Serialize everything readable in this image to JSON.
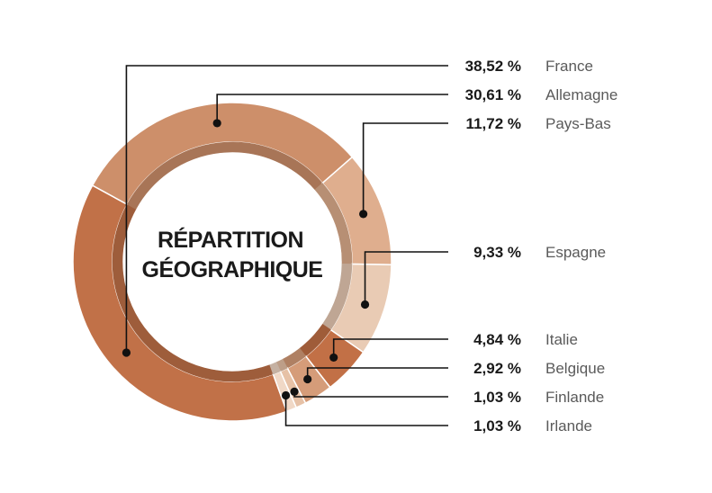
{
  "chart_data": {
    "type": "pie",
    "variant": "donut",
    "title_lines": [
      "RÉPARTITION",
      "GÉOGRAPHIQUE"
    ],
    "slices": [
      {
        "label": "France",
        "value_label": "38,52 %",
        "value": 38.52,
        "color": "#c17148"
      },
      {
        "label": "Allemagne",
        "value_label": "30,61 %",
        "value": 30.61,
        "color": "#cd8f6a"
      },
      {
        "label": "Pays-Bas",
        "value_label": "11,72 %",
        "value": 11.72,
        "color": "#dfae8e"
      },
      {
        "label": "Espagne",
        "value_label": "9,33 %",
        "value": 9.33,
        "color": "#e9cbb4"
      },
      {
        "label": "Italie",
        "value_label": "4,84 %",
        "value": 4.84,
        "color": "#c27046"
      },
      {
        "label": "Belgique",
        "value_label": "2,92 %",
        "value": 2.92,
        "color": "#d59c79"
      },
      {
        "label": "Finlande",
        "value_label": "1,03 %",
        "value": 1.03,
        "color": "#e6c1a6"
      },
      {
        "label": "Irlande",
        "value_label": "1,03 %",
        "value": 1.03,
        "color": "#f0d8c6"
      }
    ]
  }
}
